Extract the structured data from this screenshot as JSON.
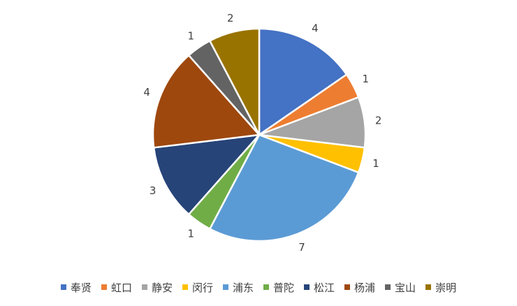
{
  "chart_data": {
    "type": "pie",
    "title": "",
    "categories": [
      "奉贤",
      "虹口",
      "静安",
      "闵行",
      "浦东",
      "普陀",
      "松江",
      "杨浦",
      "宝山",
      "崇明"
    ],
    "values": [
      4,
      1,
      2,
      1,
      7,
      1,
      3,
      4,
      1,
      2
    ],
    "colors": [
      "#4472C4",
      "#ED7D31",
      "#A5A5A5",
      "#FFC000",
      "#5B9BD5",
      "#70AD47",
      "#264478",
      "#9E480E",
      "#636363",
      "#997300"
    ],
    "data_labels": [
      "4",
      "1",
      "2",
      "1",
      "7",
      "1",
      "3",
      "4",
      "1",
      "2"
    ],
    "legend_position": "bottom",
    "start_angle": "12 o'clock, clockwise"
  }
}
